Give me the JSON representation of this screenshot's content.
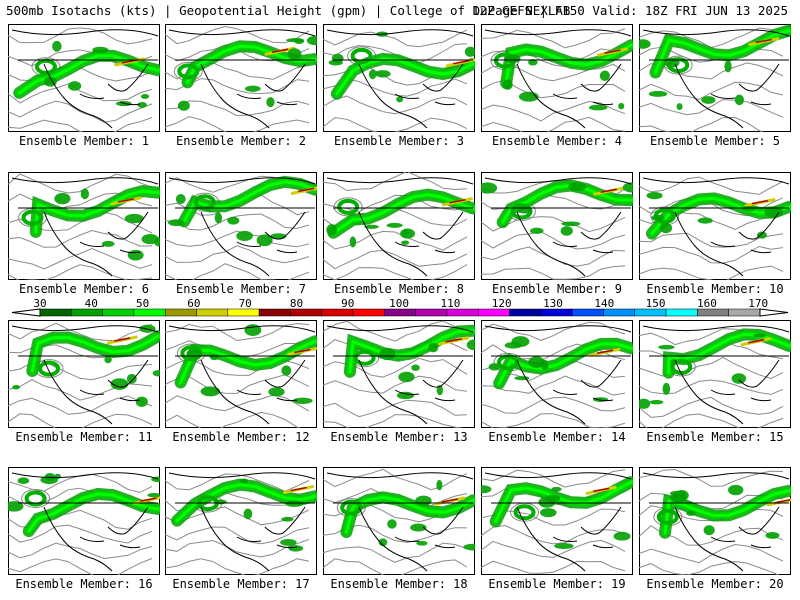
{
  "header": {
    "left": "500mb Isotachs (kts) | Geopotential Height (gpm) | College of DuPage NEXLAB",
    "right": "12Z GEFS | F150 Valid: 18Z FRI JUN 13 2025"
  },
  "panels": [
    {
      "label": "Ensemble Member: 1"
    },
    {
      "label": "Ensemble Member: 2"
    },
    {
      "label": "Ensemble Member: 3"
    },
    {
      "label": "Ensemble Member: 4"
    },
    {
      "label": "Ensemble Member: 5"
    },
    {
      "label": "Ensemble Member: 6"
    },
    {
      "label": "Ensemble Member: 7"
    },
    {
      "label": "Ensemble Member: 8"
    },
    {
      "label": "Ensemble Member: 9"
    },
    {
      "label": "Ensemble Member: 10"
    },
    {
      "label": "Ensemble Member: 11"
    },
    {
      "label": "Ensemble Member: 12"
    },
    {
      "label": "Ensemble Member: 13"
    },
    {
      "label": "Ensemble Member: 14"
    },
    {
      "label": "Ensemble Member: 15"
    },
    {
      "label": "Ensemble Member: 16"
    },
    {
      "label": "Ensemble Member: 17"
    },
    {
      "label": "Ensemble Member: 18"
    },
    {
      "label": "Ensemble Member: 19"
    },
    {
      "label": "Ensemble Member: 20"
    }
  ],
  "colorbar": {
    "ticks": [
      "30",
      "40",
      "50",
      "60",
      "70",
      "80",
      "90",
      "100",
      "110",
      "120",
      "130",
      "140",
      "150",
      "160",
      "170"
    ],
    "colors": [
      "#006400",
      "#00a000",
      "#00d000",
      "#00ff00",
      "#9b9b00",
      "#cfcf00",
      "#ffff00",
      "#8b0000",
      "#b00000",
      "#d80000",
      "#ff0000",
      "#8b008b",
      "#b000b0",
      "#d800d8",
      "#ff00ff",
      "#0000a0",
      "#0000d8",
      "#0050ff",
      "#0090ff",
      "#00c0ff",
      "#00ffff",
      "#808080",
      "#a8a8a8"
    ]
  }
}
